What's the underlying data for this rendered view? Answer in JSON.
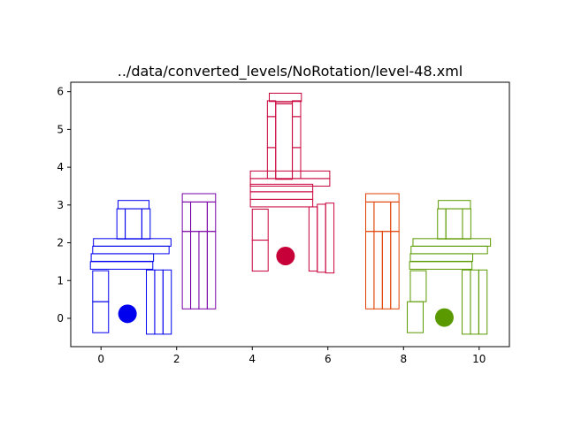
{
  "chart_data": {
    "type": "scatter",
    "title": "../data/converted_levels/NoRotation/level-48.xml",
    "xlabel": "",
    "ylabel": "",
    "xlim": [
      -0.8,
      10.8
    ],
    "ylim": [
      -0.75,
      6.25
    ],
    "x_ticks": [
      0,
      2,
      4,
      6,
      8,
      10
    ],
    "y_ticks": [
      0,
      1,
      2,
      3,
      4,
      5,
      6
    ],
    "grid": false,
    "groups": [
      {
        "color": "#0000ee",
        "blocks": [
          [
            -0.22,
            -0.38,
            0.42,
            0.82
          ],
          [
            -0.22,
            0.44,
            0.42,
            0.82
          ],
          [
            -0.28,
            1.3,
            1.65,
            0.2
          ],
          [
            -0.26,
            1.51,
            1.65,
            0.2
          ],
          [
            -0.22,
            1.71,
            2.02,
            0.2
          ],
          [
            -0.2,
            1.91,
            2.05,
            0.2
          ],
          [
            1.2,
            -0.42,
            0.22,
            1.7
          ],
          [
            1.42,
            -0.42,
            0.22,
            1.7
          ],
          [
            1.64,
            -0.42,
            0.22,
            1.7
          ],
          [
            0.42,
            2.1,
            0.22,
            0.8
          ],
          [
            0.64,
            2.1,
            0.44,
            0.8
          ],
          [
            1.08,
            2.1,
            0.22,
            0.8
          ],
          [
            0.45,
            2.9,
            0.82,
            0.22
          ]
        ],
        "ball": [
          0.7,
          0.12
        ]
      },
      {
        "color": "#7a00a8",
        "blocks": [
          [
            2.15,
            0.25,
            0.22,
            2.05
          ],
          [
            2.37,
            0.25,
            0.22,
            2.05
          ],
          [
            2.59,
            0.25,
            0.22,
            2.05
          ],
          [
            2.81,
            0.25,
            0.22,
            2.05
          ],
          [
            2.15,
            2.3,
            0.22,
            0.78
          ],
          [
            2.37,
            2.3,
            0.44,
            0.78
          ],
          [
            2.81,
            2.3,
            0.22,
            0.78
          ],
          [
            2.15,
            3.08,
            0.88,
            0.22
          ]
        ],
        "ball": null
      },
      {
        "color": "#c8003a",
        "blocks": [
          [
            4.0,
            1.25,
            0.42,
            0.82
          ],
          [
            4.0,
            2.07,
            0.42,
            0.82
          ],
          [
            5.5,
            1.25,
            0.22,
            1.7
          ],
          [
            5.72,
            1.22,
            0.22,
            1.8
          ],
          [
            5.94,
            1.2,
            0.22,
            1.85
          ],
          [
            3.95,
            2.95,
            1.65,
            0.2
          ],
          [
            3.95,
            3.15,
            1.65,
            0.2
          ],
          [
            3.95,
            3.35,
            1.65,
            0.2
          ],
          [
            3.95,
            3.5,
            2.1,
            0.2
          ],
          [
            3.95,
            3.7,
            2.1,
            0.2
          ],
          [
            4.4,
            3.7,
            0.22,
            0.82
          ],
          [
            4.62,
            3.68,
            0.44,
            2.0
          ],
          [
            5.06,
            3.7,
            0.22,
            0.82
          ],
          [
            4.4,
            4.52,
            0.22,
            0.82
          ],
          [
            5.06,
            4.52,
            0.22,
            0.82
          ],
          [
            4.4,
            5.34,
            0.22,
            0.42
          ],
          [
            5.06,
            5.34,
            0.22,
            0.42
          ],
          [
            4.62,
            5.68,
            0.44,
            0.05
          ],
          [
            4.45,
            5.74,
            0.85,
            0.22
          ]
        ],
        "ball": [
          4.88,
          1.65
        ]
      },
      {
        "color": "#e04000",
        "blocks": [
          [
            7.0,
            0.25,
            0.22,
            2.05
          ],
          [
            7.22,
            0.25,
            0.22,
            2.05
          ],
          [
            7.44,
            0.25,
            0.22,
            2.05
          ],
          [
            7.66,
            0.25,
            0.22,
            2.05
          ],
          [
            7.0,
            2.3,
            0.22,
            0.78
          ],
          [
            7.22,
            2.3,
            0.44,
            0.78
          ],
          [
            7.66,
            2.3,
            0.22,
            0.78
          ],
          [
            7.0,
            3.08,
            0.88,
            0.22
          ]
        ],
        "ball": null
      },
      {
        "color": "#5a9a00",
        "blocks": [
          [
            8.1,
            -0.38,
            0.42,
            0.82
          ],
          [
            8.18,
            0.44,
            0.42,
            0.82
          ],
          [
            8.16,
            1.3,
            1.65,
            0.2
          ],
          [
            8.18,
            1.51,
            1.65,
            0.2
          ],
          [
            8.2,
            1.71,
            2.02,
            0.2
          ],
          [
            8.25,
            1.91,
            2.05,
            0.2
          ],
          [
            9.55,
            -0.42,
            0.22,
            1.7
          ],
          [
            9.77,
            -0.42,
            0.22,
            1.7
          ],
          [
            9.99,
            -0.42,
            0.22,
            1.7
          ],
          [
            8.9,
            2.1,
            0.22,
            0.8
          ],
          [
            9.12,
            2.1,
            0.44,
            0.8
          ],
          [
            9.56,
            2.1,
            0.22,
            0.8
          ],
          [
            8.92,
            2.9,
            0.85,
            0.22
          ]
        ],
        "ball": [
          9.08,
          0.02
        ]
      }
    ]
  }
}
